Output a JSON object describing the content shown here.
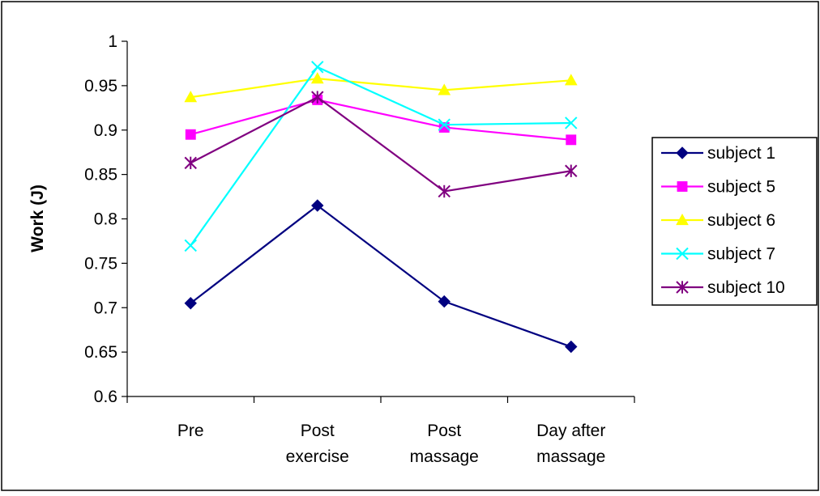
{
  "chart_data": {
    "type": "line",
    "title": "",
    "xlabel": "",
    "ylabel": "Work (J)",
    "ylim": [
      0.6,
      1.0
    ],
    "yticks": [
      "1",
      "0.95",
      "0.9",
      "0.85",
      "0.8",
      "0.75",
      "0.7",
      "0.65",
      "0.6"
    ],
    "ytick_values": [
      1,
      0.95,
      0.9,
      0.85,
      0.8,
      0.75,
      0.7,
      0.65,
      0.6
    ],
    "categories": [
      [
        "Pre"
      ],
      [
        "Post",
        "exercise"
      ],
      [
        "Post",
        "massage"
      ],
      [
        "Day after",
        "massage"
      ]
    ],
    "grid": false,
    "legend_position": "right",
    "series": [
      {
        "name": "subject 1",
        "color": "#000080",
        "marker": "diamond",
        "values": [
          0.705,
          0.815,
          0.707,
          0.656
        ]
      },
      {
        "name": "subject 5",
        "color": "#FF00FF",
        "marker": "square",
        "values": [
          0.895,
          0.934,
          0.903,
          0.889
        ]
      },
      {
        "name": "subject 6",
        "color": "#FFFF00",
        "marker": "triangle",
        "values": [
          0.937,
          0.958,
          0.945,
          0.956
        ]
      },
      {
        "name": "subject 7",
        "color": "#00FFFF",
        "marker": "x",
        "values": [
          0.77,
          0.971,
          0.906,
          0.908
        ]
      },
      {
        "name": "subject 10",
        "color": "#800080",
        "marker": "asterisk",
        "values": [
          0.863,
          0.937,
          0.831,
          0.854
        ]
      }
    ]
  }
}
